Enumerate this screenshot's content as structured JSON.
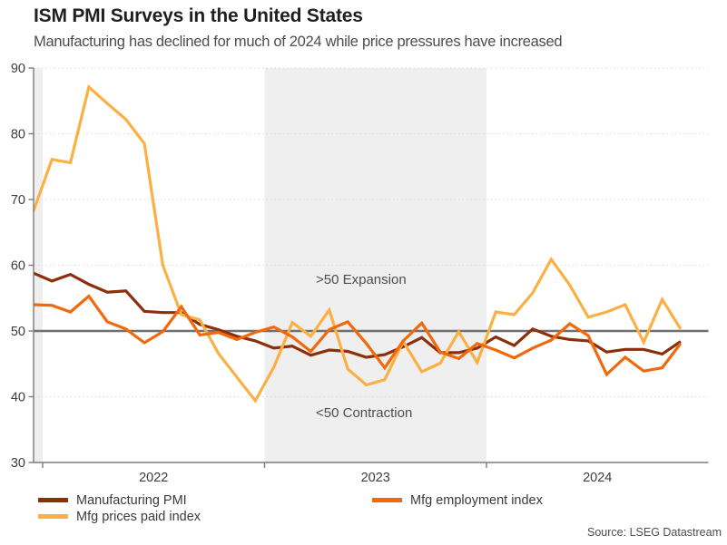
{
  "header": {
    "title": "ISM PMI Surveys in the United States",
    "subtitle": "Manufacturing has declined for much of 2024 while price pressures have increased"
  },
  "annotations": {
    "expansion": ">50 Expansion",
    "contraction": "<50 Contraction"
  },
  "legend": {
    "items": [
      {
        "label": "Manufacturing PMI",
        "color": "#8A300A"
      },
      {
        "label": "Mfg employment index",
        "color": "#F2690C"
      },
      {
        "label": "Mfg prices paid index",
        "color": "#FBB044"
      }
    ]
  },
  "source": "Source: LSEG Datastream",
  "chart_data": {
    "type": "line",
    "x_unit": "month",
    "x_start": "2021-12",
    "x_end": "2024-11",
    "x_tick_labels": [
      "2022",
      "2023",
      "2024"
    ],
    "ylim": [
      30,
      90
    ],
    "yticks": [
      30,
      40,
      50,
      60,
      70,
      80,
      90
    ],
    "reference_line": {
      "value": 50,
      "color": "#6F6F6F"
    },
    "shaded_years": [
      2021,
      2023
    ],
    "band_color": "#EFEFEF",
    "grid_color": "#DBDBDB",
    "axis_color": "#7C7C7C",
    "tick_label_color": "#3d3d3d",
    "legend_position": "bottom",
    "series": [
      {
        "name": "Manufacturing PMI",
        "color": "#8A300A",
        "values": [
          58.8,
          57.6,
          58.6,
          57.1,
          55.9,
          56.1,
          53.0,
          52.8,
          52.8,
          51.0,
          50.2,
          49.2,
          48.5,
          47.4,
          47.7,
          46.3,
          47.1,
          46.9,
          46.0,
          46.4,
          47.6,
          49.0,
          46.7,
          46.7,
          47.4,
          49.1,
          47.8,
          50.3,
          49.2,
          48.7,
          48.5,
          46.8,
          47.2,
          47.2,
          46.5,
          48.4
        ]
      },
      {
        "name": "Mfg prices paid index",
        "color": "#FBB044",
        "values": [
          68.2,
          76.1,
          75.6,
          87.1,
          84.6,
          82.2,
          78.5,
          60.0,
          52.5,
          51.7,
          46.6,
          43.0,
          39.4,
          44.5,
          51.3,
          49.2,
          53.2,
          44.2,
          41.8,
          42.6,
          48.4,
          43.8,
          45.1,
          49.9,
          45.2,
          52.9,
          52.5,
          55.8,
          60.9,
          57.0,
          52.1,
          52.9,
          54.0,
          48.3,
          54.8,
          50.3
        ]
      },
      {
        "name": "Mfg employment index",
        "color": "#F2690C",
        "values": [
          54.0,
          53.9,
          52.9,
          55.3,
          51.4,
          50.3,
          48.2,
          49.9,
          53.7,
          49.4,
          49.8,
          48.7,
          49.8,
          50.6,
          49.1,
          46.9,
          50.2,
          51.4,
          48.1,
          44.4,
          48.5,
          51.2,
          46.8,
          45.8,
          48.1,
          47.1,
          45.9,
          47.4,
          48.6,
          51.1,
          49.3,
          43.4,
          46.0,
          43.9,
          44.4,
          48.1
        ]
      }
    ]
  }
}
